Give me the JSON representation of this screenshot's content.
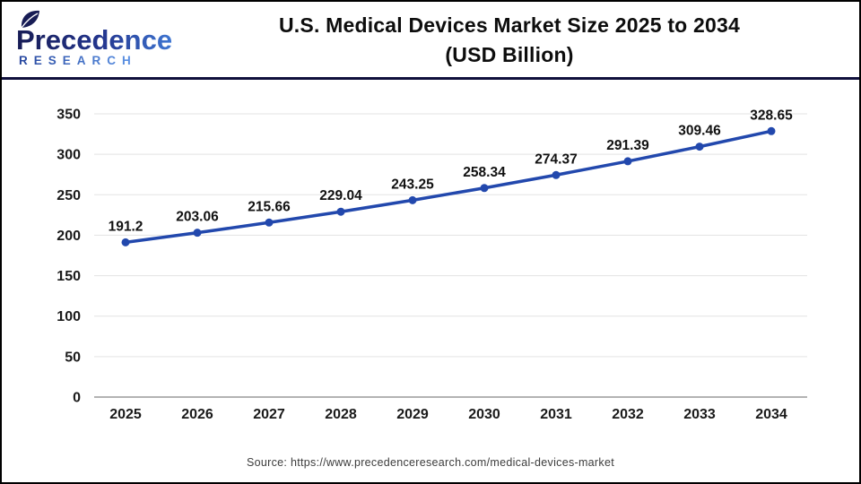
{
  "header": {
    "logo": {
      "name": "Precedence Research",
      "line1": "Precedence",
      "line2": "RESEARCH"
    },
    "title_line1": "U.S. Medical Devices Market Size 2025 to 2034",
    "title_line2": "(USD Billion)"
  },
  "chart_data": {
    "type": "line",
    "title": "U.S. Medical Devices Market Size 2025 to 2034 (USD Billion)",
    "x": [
      2025,
      2026,
      2027,
      2028,
      2029,
      2030,
      2031,
      2032,
      2033,
      2034
    ],
    "series": [
      {
        "name": "U.S. Medical Devices Market Size (USD Billion)",
        "values": [
          191.2,
          203.06,
          215.66,
          229.04,
          243.25,
          258.34,
          274.37,
          291.39,
          309.46,
          328.65
        ]
      }
    ],
    "data_labels": [
      "191.2",
      "203.06",
      "215.66",
      "229.04",
      "243.25",
      "258.34",
      "274.37",
      "291.39",
      "309.46",
      "328.65"
    ],
    "y_ticks": [
      0,
      50,
      100,
      150,
      200,
      250,
      300,
      350
    ],
    "ylim": [
      0,
      350
    ],
    "grid": true,
    "legend": "none",
    "line_color": "#2248ad",
    "marker_color": "#2248ad",
    "grid_color": "#e3e3e3",
    "axis_color": "#b3b3b3",
    "label_color": "#111111"
  },
  "footer": {
    "source": "Source: https://www.precedenceresearch.com/medical-devices-market"
  },
  "colors": {
    "accent_blue": "#2248ad",
    "logo_navy": "#171c55",
    "logo_blue": "#3e76d2",
    "divider_navy": "#10103c",
    "frame_border": "#000000"
  }
}
